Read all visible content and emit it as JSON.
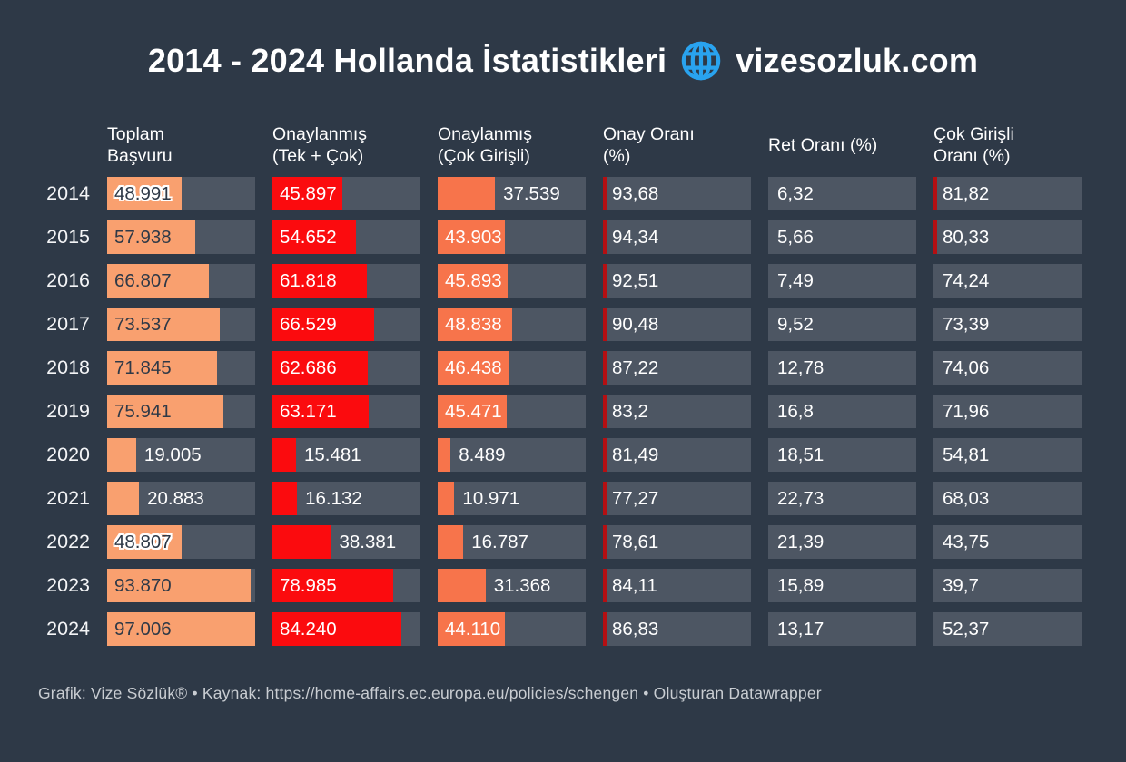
{
  "title": {
    "prefix": "2014 - 2024 Hollanda İstatistikleri",
    "suffix": "vizesozluk.com",
    "globe_color": "#29a3ef"
  },
  "colors": {
    "background": "#2e3947",
    "track": "#4d5663",
    "bar_total": "#f9a06f",
    "bar_approved": "#fb0b0e",
    "bar_multi": "#f7744b",
    "marker": "#b50f12",
    "text_dark": "#2e3947",
    "text_light": "#ffffff"
  },
  "chart_data": {
    "type": "table",
    "title": "2014 - 2024 Hollanda İstatistikleri vizesozluk.com",
    "bar_scale_max": 97006,
    "legend_position": "none",
    "grid": false,
    "columns": [
      {
        "id": "toplam_basvuru",
        "lines": [
          "Toplam",
          "Başvuru"
        ],
        "kind": "bar",
        "color_key": "bar_total",
        "label_style": "dark"
      },
      {
        "id": "onaylanmis_tek_cok",
        "lines": [
          "Onaylanmış",
          "(Tek + Çok)"
        ],
        "kind": "bar",
        "color_key": "bar_approved",
        "label_style": "light"
      },
      {
        "id": "onaylanmis_cok_girisli",
        "lines": [
          "Onaylanmış",
          "(Çok Girişli)"
        ],
        "kind": "bar",
        "color_key": "bar_multi",
        "label_style": "light"
      },
      {
        "id": "onay_orani",
        "lines": [
          "Onay Oranı",
          "(%)"
        ],
        "kind": "rate"
      },
      {
        "id": "ret_orani",
        "lines": [
          "Ret Oranı (%)"
        ],
        "kind": "rate"
      },
      {
        "id": "cok_girisli_orani",
        "lines": [
          "Çok Girişli",
          "Oranı (%)"
        ],
        "kind": "rate"
      }
    ],
    "rows": [
      {
        "year": "2014",
        "cells": [
          {
            "label": "48.991",
            "value": 48991,
            "inside": true,
            "halo": true
          },
          {
            "label": "45.897",
            "value": 45897,
            "inside": true
          },
          {
            "label": "37.539",
            "value": 37539,
            "inside": false
          },
          {
            "label": "93,68",
            "value": 93.68,
            "marker": true
          },
          {
            "label": "6,32",
            "value": 6.32,
            "marker": false
          },
          {
            "label": "81,82",
            "value": 81.82,
            "marker": true
          }
        ]
      },
      {
        "year": "2015",
        "cells": [
          {
            "label": "57.938",
            "value": 57938,
            "inside": true
          },
          {
            "label": "54.652",
            "value": 54652,
            "inside": true
          },
          {
            "label": "43.903",
            "value": 43903,
            "inside": true
          },
          {
            "label": "94,34",
            "value": 94.34,
            "marker": true
          },
          {
            "label": "5,66",
            "value": 5.66,
            "marker": false
          },
          {
            "label": "80,33",
            "value": 80.33,
            "marker": true
          }
        ]
      },
      {
        "year": "2016",
        "cells": [
          {
            "label": "66.807",
            "value": 66807,
            "inside": true
          },
          {
            "label": "61.818",
            "value": 61818,
            "inside": true
          },
          {
            "label": "45.893",
            "value": 45893,
            "inside": true
          },
          {
            "label": "92,51",
            "value": 92.51,
            "marker": true
          },
          {
            "label": "7,49",
            "value": 7.49,
            "marker": false
          },
          {
            "label": "74,24",
            "value": 74.24,
            "marker": false
          }
        ]
      },
      {
        "year": "2017",
        "cells": [
          {
            "label": "73.537",
            "value": 73537,
            "inside": true
          },
          {
            "label": "66.529",
            "value": 66529,
            "inside": true
          },
          {
            "label": "48.838",
            "value": 48838,
            "inside": true
          },
          {
            "label": "90,48",
            "value": 90.48,
            "marker": true
          },
          {
            "label": "9,52",
            "value": 9.52,
            "marker": false
          },
          {
            "label": "73,39",
            "value": 73.39,
            "marker": false
          }
        ]
      },
      {
        "year": "2018",
        "cells": [
          {
            "label": "71.845",
            "value": 71845,
            "inside": true
          },
          {
            "label": "62.686",
            "value": 62686,
            "inside": true
          },
          {
            "label": "46.438",
            "value": 46438,
            "inside": true
          },
          {
            "label": "87,22",
            "value": 87.22,
            "marker": true
          },
          {
            "label": "12,78",
            "value": 12.78,
            "marker": false
          },
          {
            "label": "74,06",
            "value": 74.06,
            "marker": false
          }
        ]
      },
      {
        "year": "2019",
        "cells": [
          {
            "label": "75.941",
            "value": 75941,
            "inside": true
          },
          {
            "label": "63.171",
            "value": 63171,
            "inside": true
          },
          {
            "label": "45.471",
            "value": 45471,
            "inside": true
          },
          {
            "label": "83,2",
            "value": 83.2,
            "marker": true
          },
          {
            "label": "16,8",
            "value": 16.8,
            "marker": false
          },
          {
            "label": "71,96",
            "value": 71.96,
            "marker": false
          }
        ]
      },
      {
        "year": "2020",
        "cells": [
          {
            "label": "19.005",
            "value": 19005,
            "inside": false
          },
          {
            "label": "15.481",
            "value": 15481,
            "inside": false
          },
          {
            "label": "8.489",
            "value": 8489,
            "inside": false
          },
          {
            "label": "81,49",
            "value": 81.49,
            "marker": true
          },
          {
            "label": "18,51",
            "value": 18.51,
            "marker": false
          },
          {
            "label": "54,81",
            "value": 54.81,
            "marker": false
          }
        ]
      },
      {
        "year": "2021",
        "cells": [
          {
            "label": "20.883",
            "value": 20883,
            "inside": false
          },
          {
            "label": "16.132",
            "value": 16132,
            "inside": false
          },
          {
            "label": "10.971",
            "value": 10971,
            "inside": false
          },
          {
            "label": "77,27",
            "value": 77.27,
            "marker": true
          },
          {
            "label": "22,73",
            "value": 22.73,
            "marker": false
          },
          {
            "label": "68,03",
            "value": 68.03,
            "marker": false
          }
        ]
      },
      {
        "year": "2022",
        "cells": [
          {
            "label": "48.807",
            "value": 48807,
            "inside": true,
            "halo": true
          },
          {
            "label": "38.381",
            "value": 38381,
            "inside": false
          },
          {
            "label": "16.787",
            "value": 16787,
            "inside": false
          },
          {
            "label": "78,61",
            "value": 78.61,
            "marker": true
          },
          {
            "label": "21,39",
            "value": 21.39,
            "marker": false
          },
          {
            "label": "43,75",
            "value": 43.75,
            "marker": false
          }
        ]
      },
      {
        "year": "2023",
        "cells": [
          {
            "label": "93.870",
            "value": 93870,
            "inside": true
          },
          {
            "label": "78.985",
            "value": 78985,
            "inside": true
          },
          {
            "label": "31.368",
            "value": 31368,
            "inside": false
          },
          {
            "label": "84,11",
            "value": 84.11,
            "marker": true
          },
          {
            "label": "15,89",
            "value": 15.89,
            "marker": false
          },
          {
            "label": "39,7",
            "value": 39.7,
            "marker": false
          }
        ]
      },
      {
        "year": "2024",
        "cells": [
          {
            "label": "97.006",
            "value": 97006,
            "inside": true
          },
          {
            "label": "84.240",
            "value": 84240,
            "inside": true
          },
          {
            "label": "44.110",
            "value": 44110,
            "inside": true
          },
          {
            "label": "86,83",
            "value": 86.83,
            "marker": true
          },
          {
            "label": "13,17",
            "value": 13.17,
            "marker": false
          },
          {
            "label": "52,37",
            "value": 52.37,
            "marker": false
          }
        ]
      }
    ]
  },
  "footer": {
    "text": "Grafik: Vize Sözlük® • Kaynak: https://home-affairs.ec.europa.eu/policies/schengen • Oluşturan Datawrapper"
  }
}
